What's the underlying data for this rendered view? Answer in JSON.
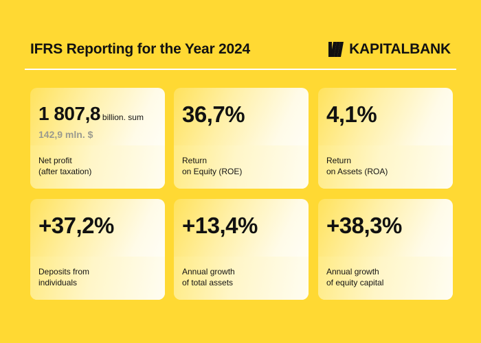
{
  "header": {
    "title": "IFRS Reporting for the Year 2024",
    "brand": "KAPITALBANK"
  },
  "colors": {
    "background": "#ffd933",
    "card_light": "#ffffff",
    "subvalue_gray": "#9a9a8f"
  },
  "cards": [
    {
      "value": "1 807,8",
      "unit": "billion. sum",
      "subvalue": "142,9 mln. $",
      "label": "Net profit\n(after taxation)"
    },
    {
      "value": "36,7%",
      "label": "Return\non Equity (ROE)"
    },
    {
      "value": "4,1%",
      "label": "Return\non Assets (ROA)"
    },
    {
      "value": "+37,2%",
      "label": "Deposits from\nindividuals"
    },
    {
      "value": "+13,4%",
      "label": "Annual growth\nof total assets"
    },
    {
      "value": "+38,3%",
      "label": "Annual growth\nof equity capital"
    }
  ]
}
